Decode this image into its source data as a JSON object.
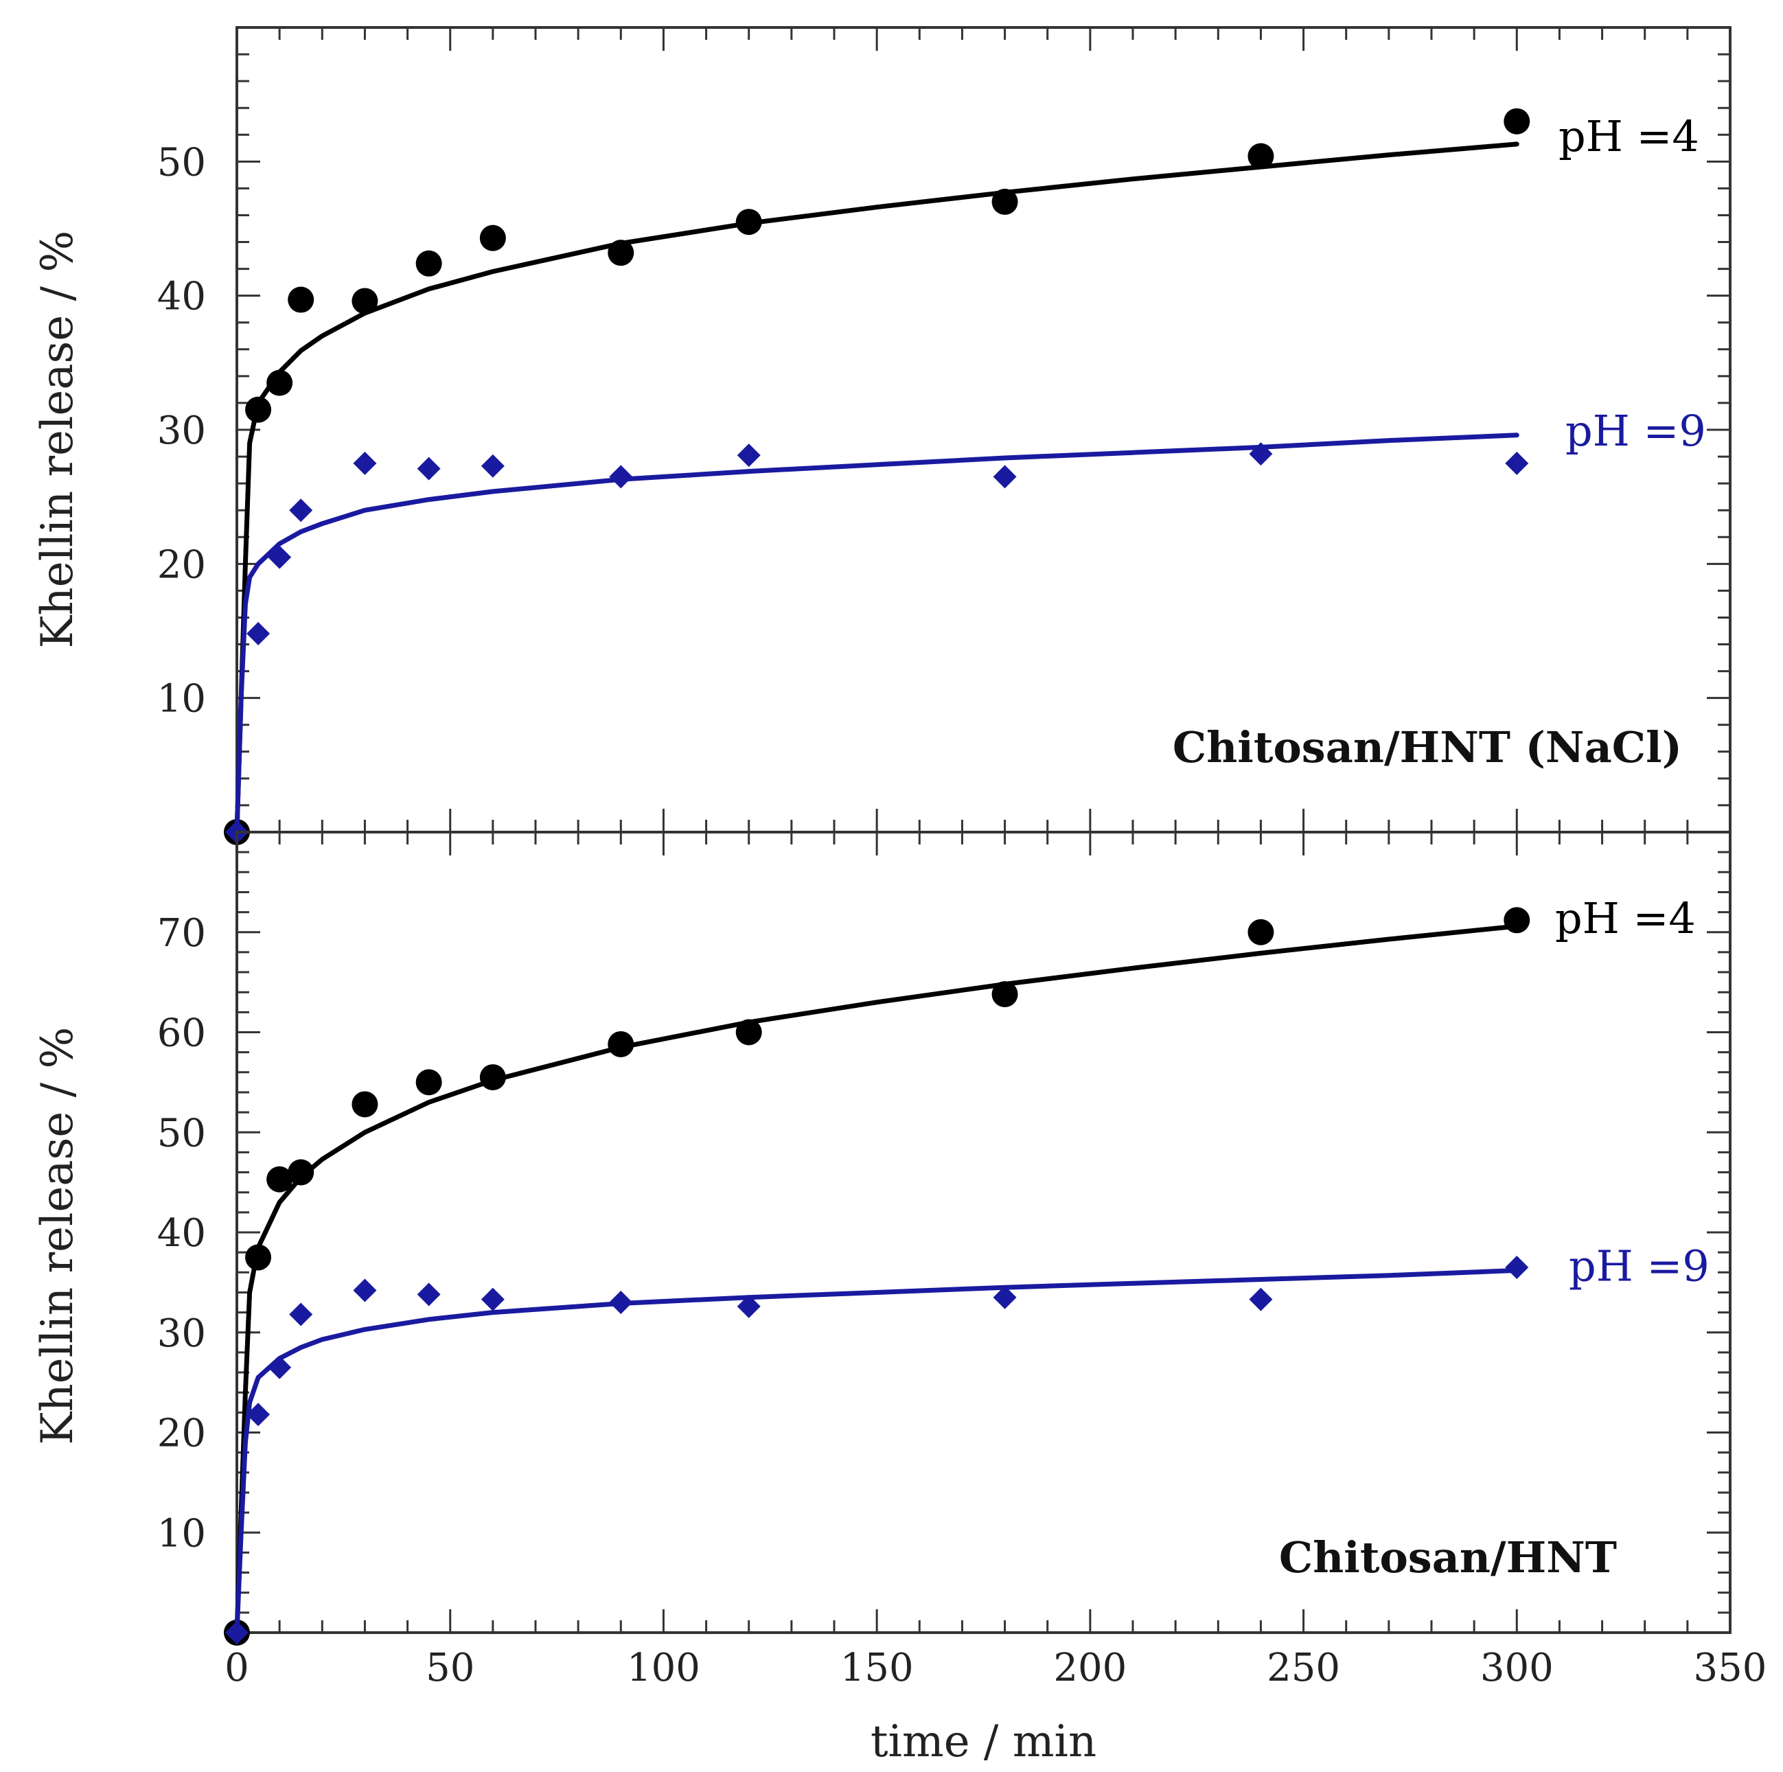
{
  "chart_data": [
    {
      "type": "scatter",
      "title": "Chitosan/HNT (NaCl)",
      "xlabel": "time / min",
      "ylabel": "Khellin release / %",
      "xlim": [
        0,
        350
      ],
      "ylim": [
        0,
        60
      ],
      "yticks": [
        10,
        20,
        30,
        40,
        50
      ],
      "yticks_labels": [
        "10",
        "20",
        "30",
        "40",
        "50"
      ],
      "series": [
        {
          "name": "pH =4",
          "color": "#000000",
          "marker": "circle",
          "points": [
            [
              0,
              0
            ],
            [
              5,
              31.5
            ],
            [
              10,
              33.5
            ],
            [
              15,
              39.7
            ],
            [
              30,
              39.6
            ],
            [
              45,
              42.4
            ],
            [
              60,
              44.3
            ],
            [
              90,
              43.2
            ],
            [
              120,
              45.5
            ],
            [
              180,
              47
            ],
            [
              240,
              50.4
            ],
            [
              300,
              53
            ]
          ],
          "fit": [
            [
              0,
              0
            ],
            [
              1,
              10
            ],
            [
              2,
              20
            ],
            [
              3,
              29
            ],
            [
              5,
              32
            ],
            [
              10,
              34.3
            ],
            [
              15,
              35.9
            ],
            [
              20,
              37
            ],
            [
              30,
              38.7
            ],
            [
              45,
              40.5
            ],
            [
              60,
              41.8
            ],
            [
              90,
              43.9
            ],
            [
              120,
              45.4
            ],
            [
              150,
              46.6
            ],
            [
              180,
              47.7
            ],
            [
              210,
              48.7
            ],
            [
              240,
              49.6
            ],
            [
              270,
              50.5
            ],
            [
              300,
              51.3
            ]
          ]
        },
        {
          "name": "pH =9",
          "color": "#1a1aa0",
          "marker": "diamond",
          "points": [
            [
              0,
              0
            ],
            [
              5,
              14.8
            ],
            [
              10,
              20.5
            ],
            [
              15,
              24
            ],
            [
              30,
              27.5
            ],
            [
              45,
              27.1
            ],
            [
              60,
              27.3
            ],
            [
              90,
              26.5
            ],
            [
              120,
              28.1
            ],
            [
              180,
              26.5
            ],
            [
              240,
              28.2
            ],
            [
              300,
              27.5
            ]
          ],
          "fit": [
            [
              0,
              0
            ],
            [
              1,
              10
            ],
            [
              2,
              17
            ],
            [
              3,
              19
            ],
            [
              5,
              20
            ],
            [
              10,
              21.5
            ],
            [
              15,
              22.4
            ],
            [
              20,
              23
            ],
            [
              30,
              24
            ],
            [
              45,
              24.8
            ],
            [
              60,
              25.4
            ],
            [
              90,
              26.3
            ],
            [
              120,
              26.9
            ],
            [
              150,
              27.4
            ],
            [
              180,
              27.9
            ],
            [
              210,
              28.3
            ],
            [
              240,
              28.7
            ],
            [
              270,
              29.2
            ],
            [
              300,
              29.6
            ]
          ]
        }
      ]
    },
    {
      "type": "scatter",
      "title": "Chitosan/HNT",
      "xlabel": "time / min",
      "ylabel": "Khellin release / %",
      "xlim": [
        0,
        350
      ],
      "ylim": [
        0,
        80
      ],
      "yticks": [
        10,
        20,
        30,
        40,
        50,
        60,
        70
      ],
      "yticks_labels": [
        "10",
        "20",
        "30",
        "40",
        "50",
        "60",
        "70"
      ],
      "xticks": [
        0,
        50,
        100,
        150,
        200,
        250,
        300,
        350
      ],
      "xticks_labels": [
        "0",
        "50",
        "100",
        "150",
        "200",
        "250",
        "300",
        "350"
      ],
      "series": [
        {
          "name": "pH =4",
          "color": "#000000",
          "marker": "circle",
          "points": [
            [
              0,
              0
            ],
            [
              5,
              37.5
            ],
            [
              10,
              45.3
            ],
            [
              15,
              46
            ],
            [
              30,
              52.8
            ],
            [
              45,
              55
            ],
            [
              60,
              55.5
            ],
            [
              90,
              58.8
            ],
            [
              120,
              60
            ],
            [
              180,
              63.8
            ],
            [
              240,
              70
            ],
            [
              300,
              71.2
            ]
          ],
          "fit": [
            [
              0,
              0
            ],
            [
              1,
              12
            ],
            [
              2,
              24
            ],
            [
              3,
              34
            ],
            [
              5,
              38.5
            ],
            [
              10,
              43
            ],
            [
              15,
              45.5
            ],
            [
              20,
              47.3
            ],
            [
              30,
              50
            ],
            [
              45,
              53
            ],
            [
              60,
              55.2
            ],
            [
              90,
              58.5
            ],
            [
              120,
              61
            ],
            [
              150,
              63
            ],
            [
              180,
              64.8
            ],
            [
              210,
              66.4
            ],
            [
              240,
              67.9
            ],
            [
              270,
              69.3
            ],
            [
              300,
              70.6
            ]
          ]
        },
        {
          "name": "pH =9",
          "color": "#1a1aa0",
          "marker": "diamond",
          "points": [
            [
              0,
              0
            ],
            [
              5,
              21.8
            ],
            [
              10,
              26.5
            ],
            [
              15,
              31.8
            ],
            [
              30,
              34.2
            ],
            [
              45,
              33.8
            ],
            [
              60,
              33.3
            ],
            [
              90,
              33
            ],
            [
              120,
              32.6
            ],
            [
              180,
              33.5
            ],
            [
              240,
              33.3
            ],
            [
              300,
              36.5
            ]
          ],
          "fit": [
            [
              0,
              0
            ],
            [
              1,
              10
            ],
            [
              2,
              19
            ],
            [
              3,
              23
            ],
            [
              5,
              25.5
            ],
            [
              10,
              27.4
            ],
            [
              15,
              28.5
            ],
            [
              20,
              29.3
            ],
            [
              30,
              30.3
            ],
            [
              45,
              31.3
            ],
            [
              60,
              32
            ],
            [
              90,
              32.9
            ],
            [
              120,
              33.5
            ],
            [
              150,
              34
            ],
            [
              180,
              34.5
            ],
            [
              210,
              34.9
            ],
            [
              240,
              35.3
            ],
            [
              270,
              35.7
            ],
            [
              300,
              36.2
            ]
          ]
        }
      ]
    }
  ]
}
